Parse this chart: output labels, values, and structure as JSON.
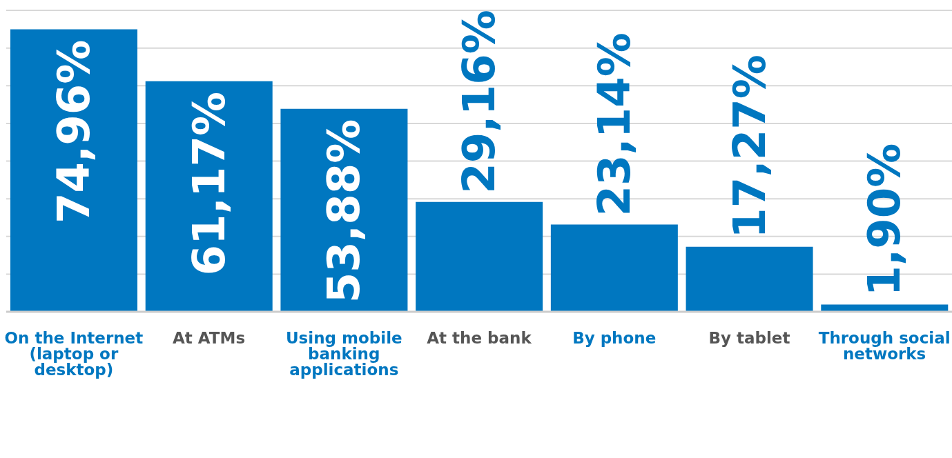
{
  "chart_data": {
    "type": "bar",
    "categories": [
      "On the Internet (laptop or desktop)",
      "At ATMs",
      "Using mobile banking applications",
      "At the bank",
      "By phone",
      "By tablet",
      "Through social networks"
    ],
    "values": [
      74.96,
      61.17,
      53.88,
      29.16,
      23.14,
      17.27,
      1.9
    ],
    "value_labels": [
      "74,96%",
      "61,17%",
      "53,88%",
      "29,16%",
      "23,14%",
      "17,27%",
      "1,90%"
    ],
    "color": "#0077c0",
    "ylim": [
      0,
      80
    ],
    "yticks": [
      {
        "value": 0,
        "label": null
      },
      {
        "value": 10,
        "label": null
      },
      {
        "value": 20,
        "label": null
      },
      {
        "value": 30,
        "label": null
      },
      {
        "value": 40,
        "label": null
      },
      {
        "value": 50,
        "label": null
      },
      {
        "value": 60,
        "label": null
      },
      {
        "value": 70,
        "label": null
      },
      {
        "value": 80,
        "label": null
      }
    ],
    "grid": "y",
    "tick_labels": "x"
  }
}
